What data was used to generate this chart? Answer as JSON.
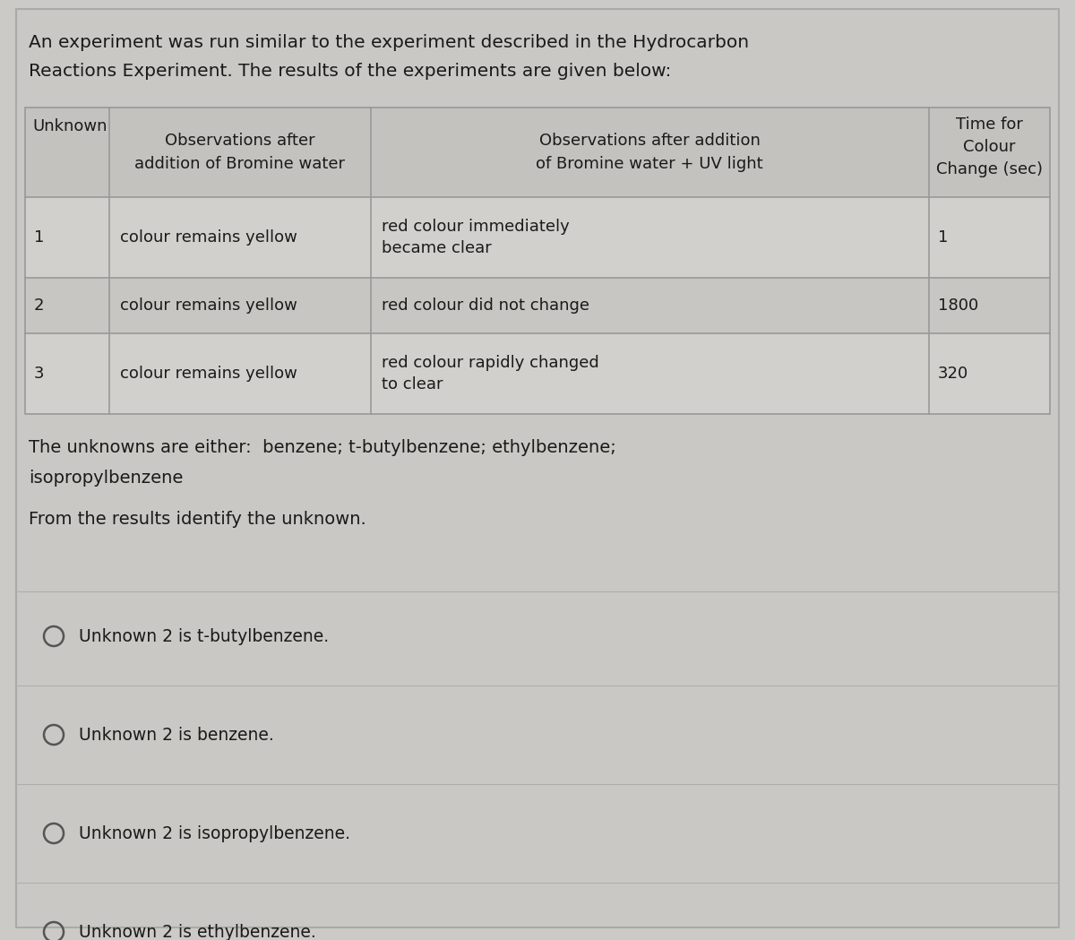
{
  "bg_color": "#cccac6",
  "panel_color": "#cac8c4",
  "table_bg_even": "#d2d0cc",
  "table_bg_odd": "#c8c6c2",
  "table_header_bg": "#c4c2be",
  "border_color": "#999999",
  "text_color": "#1a1a1a",
  "intro_text_line1": "An experiment was run similar to the experiment described in the Hydrocarbon",
  "intro_text_line2": "Reactions Experiment. The results of the experiments are given below:",
  "col0_header_line1": "Unknown",
  "col1_header_line1": "Observations after",
  "col1_header_line2": "addition of Bromine water",
  "col2_header_line1": "Observations after addition",
  "col2_header_line2": "of Bromine water + UV light",
  "col3_header_line1": "Time for",
  "col3_header_line2": "Colour",
  "col3_header_line3": "Change (sec)",
  "rows": [
    [
      "1",
      "colour remains yellow",
      "red colour immediately\nbecame clear",
      "1"
    ],
    [
      "2",
      "colour remains yellow",
      "red colour did not change",
      "1800"
    ],
    [
      "3",
      "colour remains yellow",
      "red colour rapidly changed\nto clear",
      "320"
    ]
  ],
  "unknowns_line1": "The unknowns are either:  benzene; t-butylbenzene; ethylbenzene;",
  "unknowns_line2": "isopropylbenzene",
  "identify_text": "From the results identify the unknown.",
  "options": [
    "Unknown 2 is t-butylbenzene.",
    "Unknown 2 is benzene.",
    "Unknown 2 is isopropylbenzene.",
    "Unknown 2 is ethylbenzene."
  ],
  "font_size_intro": 14.5,
  "font_size_table_header": 13.0,
  "font_size_table_body": 13.0,
  "font_size_body": 14.0,
  "font_size_options": 13.5
}
